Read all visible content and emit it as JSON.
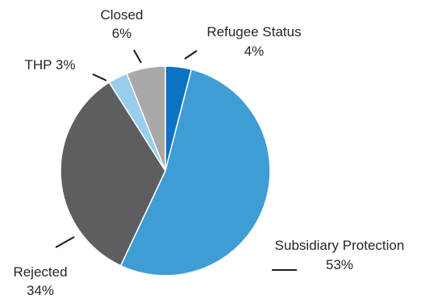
{
  "chart_data": {
    "type": "pie",
    "title": "",
    "slices": [
      {
        "name": "Refugee Status",
        "value": 4,
        "percent_label": "4%",
        "color": "#0b72c4"
      },
      {
        "name": "Subsidiary Protection",
        "value": 53,
        "percent_label": "53%",
        "color": "#3f9dd6"
      },
      {
        "name": "Rejected",
        "value": 34,
        "percent_label": "34%",
        "color": "#5e5e60"
      },
      {
        "name": "THP",
        "value": 3,
        "percent_label": "3%",
        "color": "#99cdec"
      },
      {
        "name": "Closed",
        "value": 6,
        "percent_label": "6%",
        "color": "#a9a9ac"
      }
    ],
    "start_angle": "12 o'clock",
    "direction": "clockwise",
    "legend": "none"
  },
  "labels": {
    "refugee_name": "Refugee Status",
    "refugee_pct": "4%",
    "subsidiary_name": "Subsidiary Protection",
    "subsidiary_pct": "53%",
    "rejected_name": "Rejected",
    "rejected_pct": "34%",
    "thp_full": "THP 3%",
    "closed_name": "Closed",
    "closed_pct": "6%"
  }
}
